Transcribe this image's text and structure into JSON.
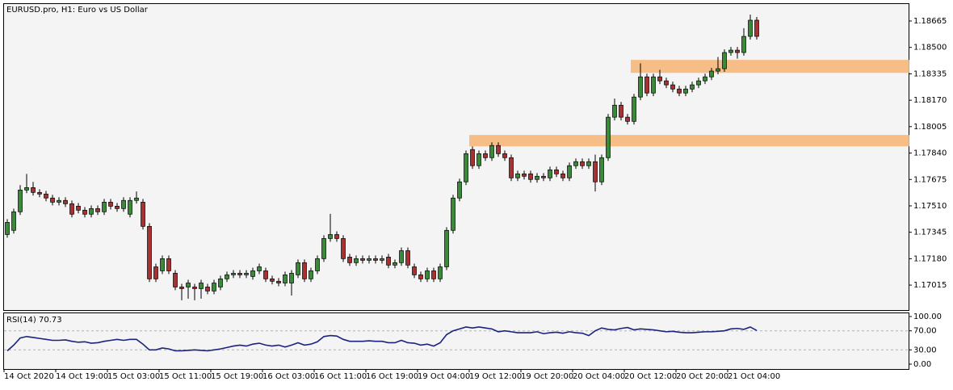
{
  "chart_data": {
    "type": "candlestick",
    "title": "EURUSD.pro, H1:  Euro vs US Dollar",
    "colors": {
      "up": "#3a8a3a",
      "down": "#a83232",
      "wick": "#000000",
      "zone": "#f7b77a",
      "rsi": "#1a237e"
    },
    "ylim": [
      1.16859,
      1.18771
    ],
    "yticks": [
      1.18665,
      {
        "value": 1.185,
        "label": "1.18500"
      },
      1.18335,
      {
        "value": 1.1817,
        "label": "1.18170"
      },
      1.18005,
      {
        "value": 1.1784,
        "label": "1.17840"
      },
      1.17675,
      {
        "value": 1.1751,
        "label": "1.17510"
      },
      1.17345,
      {
        "value": 1.1718,
        "label": "1.17180"
      },
      1.17015
    ],
    "xticks": [
      {
        "value": 0,
        "label": "14 Oct 2020"
      },
      {
        "value": 8,
        "label": "14 Oct 19:00"
      },
      {
        "value": 16,
        "label": "15 Oct 03:00"
      },
      {
        "value": 24,
        "label": "15 Oct 11:00"
      },
      {
        "value": 32,
        "label": "15 Oct 19:00"
      },
      {
        "value": 40,
        "label": "16 Oct 03:00"
      },
      {
        "value": 48,
        "label": "16 Oct 11:00"
      },
      {
        "value": 56,
        "label": "16 Oct 19:00"
      },
      {
        "value": 64,
        "label": "19 Oct 04:00"
      },
      {
        "value": 72,
        "label": "19 Oct 12:00"
      },
      {
        "value": 80,
        "label": "19 Oct 20:00"
      },
      {
        "value": 88,
        "label": "20 Oct 04:00"
      },
      {
        "value": 96,
        "label": "20 Oct 12:00"
      },
      {
        "value": 104,
        "label": "20 Oct 20:00"
      },
      {
        "value": 112,
        "label": "21 Oct 04:00"
      }
    ],
    "zones": [
      {
        "start": 97,
        "ylim": [
          1.18341,
          1.18422
        ]
      },
      {
        "start": 72,
        "ylim": [
          1.17882,
          1.17953
        ]
      }
    ],
    "ohlc": [
      [
        1.17331,
        1.17427,
        1.17311,
        1.17407
      ],
      [
        1.17357,
        1.17493,
        1.17337,
        1.17473
      ],
      [
        1.17473,
        1.1764,
        1.17453,
        1.17609
      ],
      [
        1.17609,
        1.1771,
        1.17589,
        1.17624
      ],
      [
        1.17624,
        1.1766,
        1.17574,
        1.17594
      ],
      [
        1.17594,
        1.17614,
        1.17564,
        1.17584
      ],
      [
        1.17584,
        1.17604,
        1.17539,
        1.17559
      ],
      [
        1.17559,
        1.17579,
        1.17513,
        1.17533
      ],
      [
        1.17533,
        1.17564,
        1.17513,
        1.17544
      ],
      [
        1.17544,
        1.17564,
        1.17503,
        1.17523
      ],
      [
        1.17523,
        1.17543,
        1.17438,
        1.17458
      ],
      [
        1.17508,
        1.17528,
        1.17463,
        1.17483
      ],
      [
        1.17483,
        1.17503,
        1.17438,
        1.17458
      ],
      [
        1.17458,
        1.17513,
        1.17438,
        1.17493
      ],
      [
        1.17493,
        1.17513,
        1.17453,
        1.17473
      ],
      [
        1.17473,
        1.17553,
        1.17453,
        1.17533
      ],
      [
        1.17533,
        1.17553,
        1.17488,
        1.17508
      ],
      [
        1.17508,
        1.17528,
        1.17473,
        1.17493
      ],
      [
        1.17493,
        1.17564,
        1.17473,
        1.17544
      ],
      [
        1.17458,
        1.17564,
        1.17438,
        1.17544
      ],
      [
        1.17544,
        1.176,
        1.17524,
        1.17559
      ],
      [
        1.17533,
        1.17553,
        1.17362,
        1.17382
      ],
      [
        1.17382,
        1.17402,
        1.17034,
        1.17054
      ],
      [
        1.17129,
        1.17149,
        1.17034,
        1.17054
      ],
      [
        1.17104,
        1.172,
        1.17084,
        1.1718
      ],
      [
        1.1718,
        1.172,
        1.17084,
        1.17104
      ],
      [
        1.17089,
        1.17109,
        1.16983,
        1.17003
      ],
      [
        1.17003,
        1.17023,
        1.1692,
        1.16993
      ],
      [
        1.17003,
        1.17048,
        1.1693,
        1.17028
      ],
      [
        1.17003,
        1.17023,
        1.1692,
        1.16993
      ],
      [
        1.16993,
        1.17048,
        1.1693,
        1.17028
      ],
      [
        1.17003,
        1.17023,
        1.16958,
        1.16978
      ],
      [
        1.16978,
        1.17048,
        1.16958,
        1.17028
      ],
      [
        1.17003,
        1.17074,
        1.16983,
        1.17054
      ],
      [
        1.17054,
        1.17099,
        1.17034,
        1.17079
      ],
      [
        1.17079,
        1.17109,
        1.17059,
        1.17089
      ],
      [
        1.17089,
        1.17109,
        1.17059,
        1.17079
      ],
      [
        1.17079,
        1.17109,
        1.17059,
        1.17089
      ],
      [
        1.17069,
        1.17124,
        1.17049,
        1.17104
      ],
      [
        1.17104,
        1.17149,
        1.17084,
        1.17129
      ],
      [
        1.17104,
        1.17124,
        1.17034,
        1.17054
      ],
      [
        1.17054,
        1.17074,
        1.17019,
        1.17039
      ],
      [
        1.17039,
        1.17059,
        1.17008,
        1.17028
      ],
      [
        1.17028,
        1.17099,
        1.17008,
        1.17079
      ],
      [
        1.17028,
        1.17109,
        1.1695,
        1.17089
      ],
      [
        1.17079,
        1.17175,
        1.17059,
        1.17155
      ],
      [
        1.17155,
        1.17175,
        1.17034,
        1.17054
      ],
      [
        1.17054,
        1.17124,
        1.17034,
        1.17104
      ],
      [
        1.17104,
        1.172,
        1.17084,
        1.1718
      ],
      [
        1.1718,
        1.17326,
        1.1716,
        1.17306
      ],
      [
        1.17306,
        1.1746,
        1.17286,
        1.17331
      ],
      [
        1.17331,
        1.17351,
        1.17286,
        1.17306
      ],
      [
        1.17306,
        1.17326,
        1.1716,
        1.1718
      ],
      [
        1.1719,
        1.1721,
        1.17135,
        1.17155
      ],
      [
        1.17155,
        1.172,
        1.17135,
        1.1718
      ],
      [
        1.1718,
        1.172,
        1.1715,
        1.1717
      ],
      [
        1.1717,
        1.172,
        1.1715,
        1.1718
      ],
      [
        1.1718,
        1.172,
        1.1715,
        1.1717
      ],
      [
        1.1717,
        1.172,
        1.1715,
        1.1718
      ],
      [
        1.1719,
        1.1721,
        1.1712,
        1.1714
      ],
      [
        1.1714,
        1.17175,
        1.1712,
        1.17155
      ],
      [
        1.17155,
        1.1725,
        1.17135,
        1.1723
      ],
      [
        1.1723,
        1.1725,
        1.1712,
        1.1714
      ],
      [
        1.17129,
        1.17149,
        1.17059,
        1.17079
      ],
      [
        1.17079,
        1.17099,
        1.17034,
        1.17054
      ],
      [
        1.17054,
        1.17124,
        1.17034,
        1.17104
      ],
      [
        1.17104,
        1.17124,
        1.17034,
        1.17054
      ],
      [
        1.17054,
        1.17149,
        1.17034,
        1.17129
      ],
      [
        1.17129,
        1.17377,
        1.17109,
        1.17357
      ],
      [
        1.17357,
        1.17579,
        1.17337,
        1.17559
      ],
      [
        1.17559,
        1.1768,
        1.17539,
        1.1766
      ],
      [
        1.1766,
        1.17856,
        1.1764,
        1.17836
      ],
      [
        1.17862,
        1.17882,
        1.17741,
        1.17761
      ],
      [
        1.17761,
        1.17856,
        1.17741,
        1.17836
      ],
      [
        1.17836,
        1.17856,
        1.17791,
        1.17811
      ],
      [
        1.17811,
        1.17907,
        1.17791,
        1.17887
      ],
      [
        1.17887,
        1.17907,
        1.17816,
        1.17836
      ],
      [
        1.17836,
        1.17856,
        1.17791,
        1.17811
      ],
      [
        1.17811,
        1.17831,
        1.17665,
        1.17685
      ],
      [
        1.17685,
        1.1773,
        1.17665,
        1.1771
      ],
      [
        1.1771,
        1.1773,
        1.17675,
        1.17695
      ],
      [
        1.1771,
        1.1773,
        1.17655,
        1.17675
      ],
      [
        1.17675,
        1.17715,
        1.17655,
        1.17695
      ],
      [
        1.17695,
        1.17715,
        1.17665,
        1.17685
      ],
      [
        1.17685,
        1.17755,
        1.17665,
        1.17735
      ],
      [
        1.17735,
        1.17755,
        1.1769,
        1.1771
      ],
      [
        1.1771,
        1.1773,
        1.17665,
        1.17685
      ],
      [
        1.17685,
        1.17781,
        1.17665,
        1.17761
      ],
      [
        1.17761,
        1.17806,
        1.17741,
        1.17786
      ],
      [
        1.17786,
        1.17806,
        1.17741,
        1.17761
      ],
      [
        1.17761,
        1.17806,
        1.17741,
        1.17786
      ],
      [
        1.17786,
        1.1783,
        1.176,
        1.1766
      ],
      [
        1.1766,
        1.17831,
        1.1764,
        1.17811
      ],
      [
        1.17811,
        1.18084,
        1.17791,
        1.18064
      ],
      [
        1.18064,
        1.1818,
        1.18044,
        1.18139
      ],
      [
        1.18139,
        1.18159,
        1.18044,
        1.18064
      ],
      [
        1.18064,
        1.18084,
        1.18018,
        1.18038
      ],
      [
        1.18038,
        1.1821,
        1.18018,
        1.1819
      ],
      [
        1.1819,
        1.184,
        1.1817,
        1.18316
      ],
      [
        1.18316,
        1.18336,
        1.18195,
        1.18215
      ],
      [
        1.18215,
        1.18336,
        1.18195,
        1.18316
      ],
      [
        1.18316,
        1.1836,
        1.18271,
        1.18291
      ],
      [
        1.18291,
        1.18311,
        1.18246,
        1.18266
      ],
      [
        1.18266,
        1.18286,
        1.1822,
        1.1824
      ],
      [
        1.1824,
        1.1826,
        1.18195,
        1.18215
      ],
      [
        1.18215,
        1.1826,
        1.18195,
        1.1824
      ],
      [
        1.1824,
        1.18286,
        1.1822,
        1.18266
      ],
      [
        1.18266,
        1.18311,
        1.18246,
        1.18291
      ],
      [
        1.18291,
        1.18336,
        1.18271,
        1.18316
      ],
      [
        1.18316,
        1.18372,
        1.18296,
        1.18352
      ],
      [
        1.18352,
        1.1844,
        1.18332,
        1.18367
      ],
      [
        1.18367,
        1.18488,
        1.18347,
        1.18468
      ],
      [
        1.18468,
        1.18503,
        1.18448,
        1.18483
      ],
      [
        1.18483,
        1.18503,
        1.1843,
        1.18468
      ],
      [
        1.18468,
        1.1862,
        1.18448,
        1.18569
      ],
      [
        1.18569,
        1.18705,
        1.18549,
        1.1867
      ],
      [
        1.1867,
        1.1869,
        1.18549,
        1.18569
      ]
    ],
    "rsi": {
      "label": "RSI(14) 70.73",
      "ylim": [
        0,
        100
      ],
      "yticks": [
        {
          "value": 100,
          "label": "100.00"
        },
        {
          "value": 70,
          "label": "70.00"
        },
        {
          "value": 30,
          "label": "30.00"
        },
        {
          "value": 0,
          "label": "0.00"
        }
      ],
      "levels": [
        70,
        30
      ],
      "values": [
        28,
        40,
        55,
        58,
        56,
        54,
        52,
        50,
        50,
        51,
        48,
        46,
        47,
        44,
        45,
        48,
        50,
        52,
        50,
        52,
        52,
        42,
        30,
        30,
        34,
        32,
        28,
        28,
        29,
        30,
        29,
        28,
        30,
        32,
        35,
        38,
        40,
        38,
        42,
        44,
        40,
        38,
        40,
        36,
        40,
        45,
        40,
        42,
        47,
        58,
        60,
        59,
        52,
        48,
        48,
        48,
        49,
        48,
        48,
        45,
        45,
        50,
        45,
        44,
        40,
        42,
        38,
        45,
        62,
        70,
        74,
        78,
        76,
        78,
        76,
        74,
        68,
        70,
        68,
        66,
        66,
        66,
        68,
        64,
        66,
        67,
        65,
        68,
        66,
        65,
        60,
        70,
        76,
        73,
        72,
        75,
        77,
        72,
        74,
        73,
        72,
        70,
        68,
        69,
        67,
        66,
        66,
        67,
        68,
        68,
        69,
        70,
        74,
        75,
        73,
        78,
        70.73
      ]
    }
  }
}
